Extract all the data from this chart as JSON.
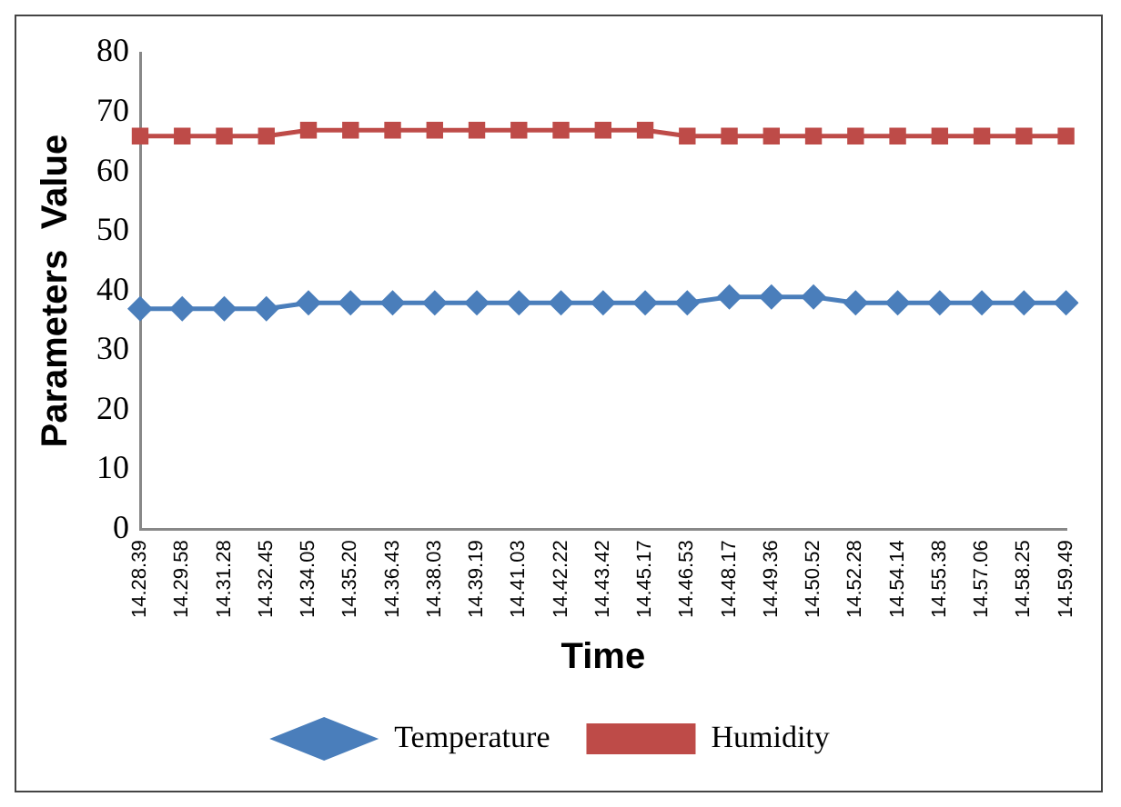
{
  "chart_data": {
    "type": "line",
    "xlabel": "Time",
    "ylabel": "Parameters  Value",
    "categories": [
      "14.28.39",
      "14.29.58",
      "14.31.28",
      "14.32.45",
      "14.34.05",
      "14.35.20",
      "14.36.43",
      "14.38.03",
      "14.39.19",
      "14.41.03",
      "14.42.22",
      "14.43.42",
      "14.45.17",
      "14.46.53",
      "14.48.17",
      "14.49.36",
      "14.50.52",
      "14.52.28",
      "14.54.14",
      "14.55.38",
      "14.57.06",
      "14.58.25",
      "14.59.49"
    ],
    "series": [
      {
        "name": "Temperature",
        "color": "#4a7ebb",
        "marker": "diamond",
        "values": [
          37,
          37,
          37,
          37,
          38,
          38,
          38,
          38,
          38,
          38,
          38,
          38,
          38,
          38,
          39,
          39,
          39,
          38,
          38,
          38,
          38,
          38,
          38
        ]
      },
      {
        "name": "Humidity",
        "color": "#be4b48",
        "marker": "square",
        "values": [
          66,
          66,
          66,
          66,
          67,
          67,
          67,
          67,
          67,
          67,
          67,
          67,
          67,
          66,
          66,
          66,
          66,
          66,
          66,
          66,
          66,
          66,
          66
        ]
      }
    ],
    "ylim": [
      0,
      80
    ],
    "yticks": [
      0,
      10,
      20,
      30,
      40,
      50,
      60,
      70,
      80
    ],
    "grid": false,
    "legend": "bottom",
    "line_style": "solid"
  }
}
